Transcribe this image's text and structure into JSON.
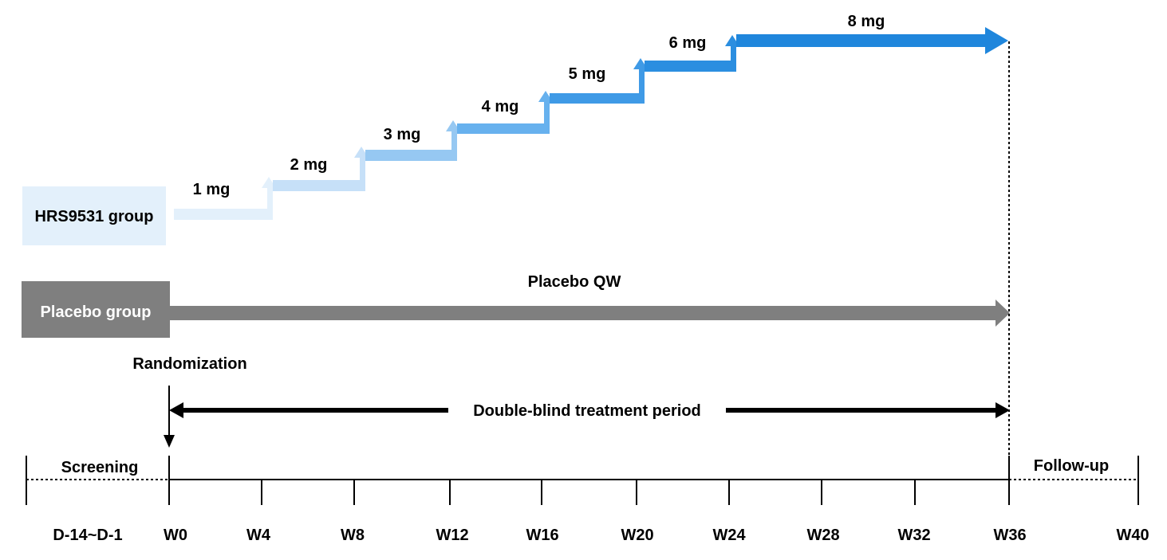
{
  "groups": {
    "hrs": {
      "label": "HRS9531 group",
      "color": "#e3f0fb"
    },
    "placebo": {
      "label": "Placebo group",
      "color": "#7f7f7f"
    }
  },
  "doses": [
    {
      "label": "1 mg",
      "color": "#e3f0fb"
    },
    {
      "label": "2 mg",
      "color": "#c6e0f8"
    },
    {
      "label": "3 mg",
      "color": "#96c8f2"
    },
    {
      "label": "4 mg",
      "color": "#67b1ee"
    },
    {
      "label": "5 mg",
      "color": "#3f9ae6"
    },
    {
      "label": "6 mg",
      "color": "#2b8ee0"
    },
    {
      "label": "8 mg",
      "color": "#1f86dc"
    }
  ],
  "placebo_arm": {
    "label": "Placebo QW"
  },
  "randomization": {
    "label": "Randomization"
  },
  "treatment_period": {
    "label": "Double-blind treatment period"
  },
  "phases": {
    "screening": "Screening",
    "followup": "Follow-up"
  },
  "timeline": {
    "ticks": [
      "D-14~D-1",
      "W0",
      "W4",
      "W8",
      "W12",
      "W16",
      "W20",
      "W24",
      "W28",
      "W32",
      "W36",
      "W40"
    ]
  }
}
